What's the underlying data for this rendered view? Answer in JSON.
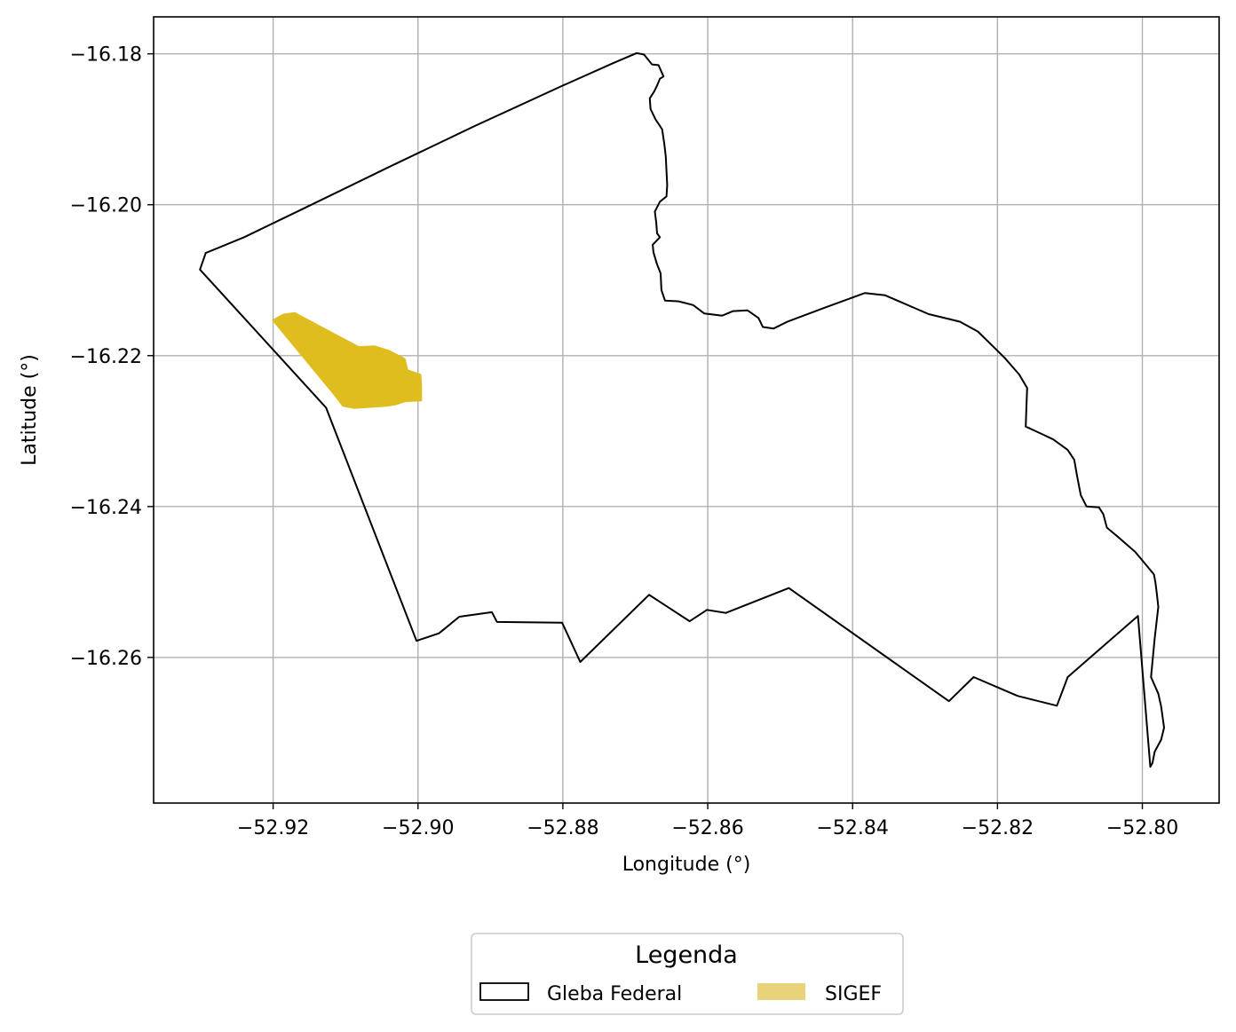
{
  "chart_data": {
    "type": "map",
    "xlabel": "Longitude (°)",
    "ylabel": "Latitude (°)",
    "xlim": [
      -52.9365,
      -52.7894
    ],
    "ylim": [
      -16.2793,
      -16.1751
    ],
    "grid": true,
    "xticks": [
      -52.92,
      -52.9,
      -52.88,
      -52.86,
      -52.84,
      -52.82,
      -52.8
    ],
    "yticks": [
      -16.18,
      -16.2,
      -16.22,
      -16.24,
      -16.26
    ],
    "xtick_labels": [
      "−52.92",
      "−52.90",
      "−52.88",
      "−52.86",
      "−52.84",
      "−52.82",
      "−52.80"
    ],
    "ytick_labels": [
      "−16.18",
      "−16.20",
      "−16.22",
      "−16.24",
      "−16.26"
    ],
    "legend": {
      "title": "Legenda",
      "placement": "bottom-center",
      "entries": [
        {
          "label": "Gleba Federal",
          "style": "outline",
          "color": "#000000"
        },
        {
          "label": "SIGEF",
          "style": "fill",
          "color": "#e8d37a"
        }
      ]
    },
    "layers": [
      {
        "name": "Gleba Federal",
        "style": "outline",
        "color": "#000000",
        "coordinates": [
          [
            -52.8698,
            -16.1799
          ],
          [
            -52.8688,
            -16.1801
          ],
          [
            -52.8677,
            -16.1814
          ],
          [
            -52.8668,
            -16.1815
          ],
          [
            -52.8661,
            -16.183
          ],
          [
            -52.8666,
            -16.1833
          ],
          [
            -52.867,
            -16.1842
          ],
          [
            -52.8674,
            -16.185
          ],
          [
            -52.868,
            -16.1859
          ],
          [
            -52.8679,
            -16.1873
          ],
          [
            -52.8672,
            -16.1887
          ],
          [
            -52.8663,
            -16.19
          ],
          [
            -52.866,
            -16.1919
          ],
          [
            -52.8658,
            -16.1936
          ],
          [
            -52.8657,
            -16.1955
          ],
          [
            -52.8656,
            -16.1974
          ],
          [
            -52.8657,
            -16.1989
          ],
          [
            -52.8666,
            -16.1996
          ],
          [
            -52.8673,
            -16.2009
          ],
          [
            -52.8671,
            -16.2024
          ],
          [
            -52.867,
            -16.2038
          ],
          [
            -52.8666,
            -16.2043
          ],
          [
            -52.8676,
            -16.2053
          ],
          [
            -52.8675,
            -16.2063
          ],
          [
            -52.867,
            -16.2079
          ],
          [
            -52.8665,
            -16.2091
          ],
          [
            -52.8664,
            -16.2113
          ],
          [
            -52.8659,
            -16.2127
          ],
          [
            -52.864,
            -16.2128
          ],
          [
            -52.862,
            -16.2133
          ],
          [
            -52.8605,
            -16.2144
          ],
          [
            -52.858,
            -16.2147
          ],
          [
            -52.8565,
            -16.2141
          ],
          [
            -52.8545,
            -16.214
          ],
          [
            -52.853,
            -16.215
          ],
          [
            -52.8524,
            -16.2162
          ],
          [
            -52.8509,
            -16.2164
          ],
          [
            -52.849,
            -16.2155
          ],
          [
            -52.844,
            -16.2137
          ],
          [
            -52.8383,
            -16.2117
          ],
          [
            -52.8355,
            -16.212
          ],
          [
            -52.8295,
            -16.2145
          ],
          [
            -52.8252,
            -16.2155
          ],
          [
            -52.8227,
            -16.2168
          ],
          [
            -52.8207,
            -16.2187
          ],
          [
            -52.819,
            -16.2203
          ],
          [
            -52.817,
            -16.2225
          ],
          [
            -52.8159,
            -16.2243
          ],
          [
            -52.816,
            -16.2267
          ],
          [
            -52.8161,
            -16.2294
          ],
          [
            -52.8143,
            -16.2302
          ],
          [
            -52.8123,
            -16.2311
          ],
          [
            -52.8103,
            -16.2325
          ],
          [
            -52.8094,
            -16.2338
          ],
          [
            -52.809,
            -16.236
          ],
          [
            -52.8085,
            -16.2385
          ],
          [
            -52.8077,
            -16.24
          ],
          [
            -52.806,
            -16.2401
          ],
          [
            -52.8054,
            -16.241
          ],
          [
            -52.8049,
            -16.2428
          ],
          [
            -52.8034,
            -16.244
          ],
          [
            -52.801,
            -16.246
          ],
          [
            -52.7996,
            -16.2476
          ],
          [
            -52.7984,
            -16.249
          ],
          [
            -52.7982,
            -16.25
          ],
          [
            -52.798,
            -16.2515
          ],
          [
            -52.7978,
            -16.2533
          ],
          [
            -52.7983,
            -16.2575
          ],
          [
            -52.7988,
            -16.2626
          ],
          [
            -52.7978,
            -16.2648
          ],
          [
            -52.7974,
            -16.2665
          ],
          [
            -52.797,
            -16.2693
          ],
          [
            -52.7974,
            -16.2709
          ],
          [
            -52.7983,
            -16.2725
          ],
          [
            -52.7986,
            -16.274
          ],
          [
            -52.7989,
            -16.2745
          ],
          [
            -52.8006,
            -16.2545
          ],
          [
            -52.8103,
            -16.2626
          ],
          [
            -52.8118,
            -16.2664
          ],
          [
            -52.8172,
            -16.2651
          ],
          [
            -52.8233,
            -16.2626
          ],
          [
            -52.8267,
            -16.2658
          ],
          [
            -52.8488,
            -16.2508
          ],
          [
            -52.8575,
            -16.2541
          ],
          [
            -52.8601,
            -16.2537
          ],
          [
            -52.8625,
            -16.2552
          ],
          [
            -52.8681,
            -16.2517
          ],
          [
            -52.8776,
            -16.2606
          ],
          [
            -52.8801,
            -16.2554
          ],
          [
            -52.8891,
            -16.2553
          ],
          [
            -52.8898,
            -16.254
          ],
          [
            -52.8943,
            -16.2546
          ],
          [
            -52.8971,
            -16.2568
          ],
          [
            -52.9002,
            -16.2578
          ],
          [
            -52.9127,
            -16.2269
          ],
          [
            -52.9301,
            -16.2086
          ],
          [
            -52.9293,
            -16.2064
          ],
          [
            -52.924,
            -16.2043
          ],
          [
            -52.916,
            -16.2006
          ],
          [
            -52.904,
            -16.195
          ],
          [
            -52.892,
            -16.1895
          ],
          [
            -52.88,
            -16.1842
          ],
          [
            -52.873,
            -16.1812
          ],
          [
            -52.8698,
            -16.1799
          ]
        ]
      },
      {
        "name": "SIGEF",
        "style": "fill",
        "color": "#dfbd1f",
        "coordinates": [
          [
            -52.9201,
            -16.2153
          ],
          [
            -52.9186,
            -16.2145
          ],
          [
            -52.917,
            -16.2143
          ],
          [
            -52.9082,
            -16.2188
          ],
          [
            -52.906,
            -16.2187
          ],
          [
            -52.904,
            -16.2193
          ],
          [
            -52.9018,
            -16.2204
          ],
          [
            -52.9014,
            -16.2219
          ],
          [
            -52.8996,
            -16.2225
          ],
          [
            -52.8995,
            -16.224
          ],
          [
            -52.8995,
            -16.226
          ],
          [
            -52.9018,
            -16.2261
          ],
          [
            -52.903,
            -16.2265
          ],
          [
            -52.9043,
            -16.2267
          ],
          [
            -52.9088,
            -16.227
          ],
          [
            -52.9104,
            -16.2267
          ],
          [
            -52.9115,
            -16.2253
          ],
          [
            -52.9201,
            -16.2153
          ]
        ]
      }
    ]
  }
}
